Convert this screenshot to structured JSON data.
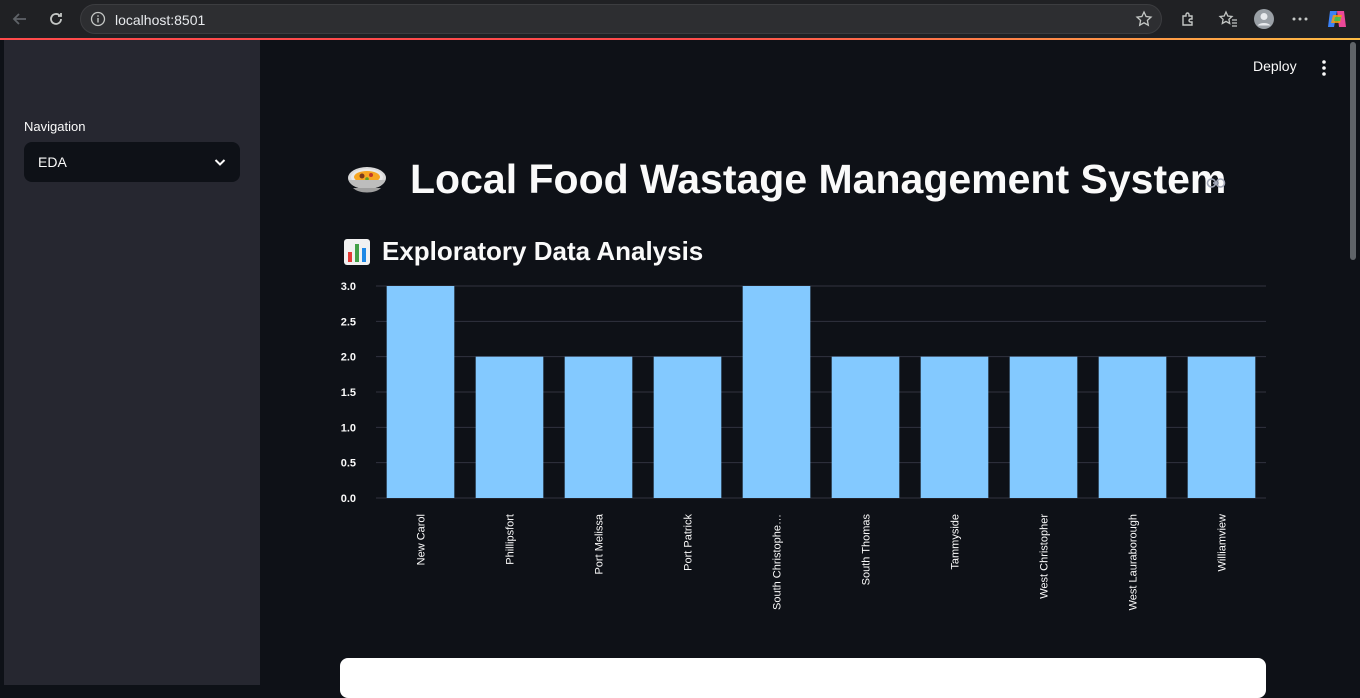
{
  "browser": {
    "url": "localhost:8501"
  },
  "sidebar": {
    "nav_label": "Navigation",
    "select_value": "EDA"
  },
  "header": {
    "deploy_label": "Deploy"
  },
  "main": {
    "title": "Local Food Wastage Management System",
    "section_title": "Exploratory Data Analysis"
  },
  "colors": {
    "bar": "#83c9ff",
    "background": "#0e1117",
    "sidebar": "#262730",
    "grid": "#31333f"
  },
  "icons": {
    "title": "food-bowl-icon",
    "section": "bar-chart-icon"
  },
  "chart_data": {
    "type": "bar",
    "categories": [
      "New Carol",
      "Phillipsfort",
      "Port Melissa",
      "Port Patrick",
      "South Christophe…",
      "South Thomas",
      "Tammyside",
      "West Christopher",
      "West Lauraborough",
      "Williamview"
    ],
    "values": [
      3,
      2,
      2,
      2,
      3,
      2,
      2,
      2,
      2,
      2
    ],
    "yticks": [
      "0.0",
      "0.5",
      "1.0",
      "1.5",
      "2.0",
      "2.5",
      "3.0"
    ],
    "ylim": [
      0,
      3
    ],
    "grid": true
  }
}
